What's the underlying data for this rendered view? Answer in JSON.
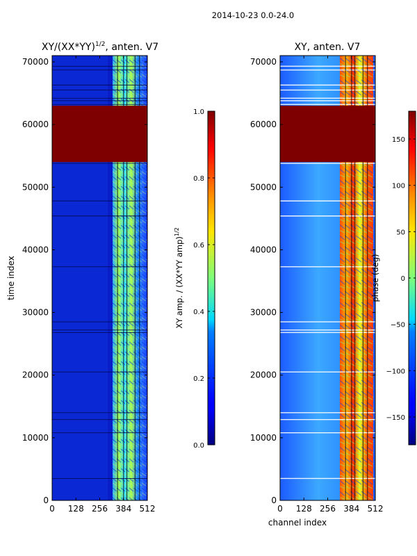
{
  "figure": {
    "suptitle": "2014-10-23 0.0-24.0"
  },
  "chart_data": [
    {
      "type": "heatmap",
      "title_main": "XY/(XX*YY)",
      "title_sup": "1/2",
      "title_rest": ", anten. V7",
      "xlabel": "",
      "ylabel": "time index",
      "xlim": [
        0,
        512
      ],
      "ylim": [
        0,
        71000
      ],
      "xticks": [
        0,
        128,
        256,
        384,
        512
      ],
      "yticks": [
        0,
        10000,
        20000,
        30000,
        40000,
        50000,
        60000,
        70000
      ],
      "colormap": "jet",
      "masked_band": [
        54000,
        63000
      ],
      "masked_color": "#7f0000",
      "colorbar": {
        "label_main": "XY amp. / (XX*YY amp)",
        "label_sup": "1/2",
        "range": [
          0.0,
          1.0
        ],
        "ticks": [
          "0.0",
          "0.2",
          "0.4",
          "0.6",
          "0.8",
          "1.0"
        ],
        "tick_values": [
          0.0,
          0.2,
          0.4,
          0.6,
          0.8,
          1.0
        ]
      }
    },
    {
      "type": "heatmap",
      "title": "XY, anten. V7",
      "xlabel": "channel index",
      "ylabel": "",
      "xlim": [
        0,
        512
      ],
      "ylim": [
        0,
        71000
      ],
      "xticks": [
        0,
        128,
        256,
        384,
        512
      ],
      "yticks": [
        0,
        10000,
        20000,
        30000,
        40000,
        50000,
        60000,
        70000
      ],
      "colormap": "jet",
      "masked_band": [
        54000,
        63000
      ],
      "masked_color": "#7f0000",
      "colorbar": {
        "label": "phase (deg)",
        "range": [
          -180,
          180
        ],
        "ticks": [
          "−150",
          "−100",
          "−50",
          "0",
          "50",
          "100",
          "150"
        ],
        "tick_values": [
          -150,
          -100,
          -50,
          0,
          50,
          100,
          150
        ]
      }
    }
  ]
}
